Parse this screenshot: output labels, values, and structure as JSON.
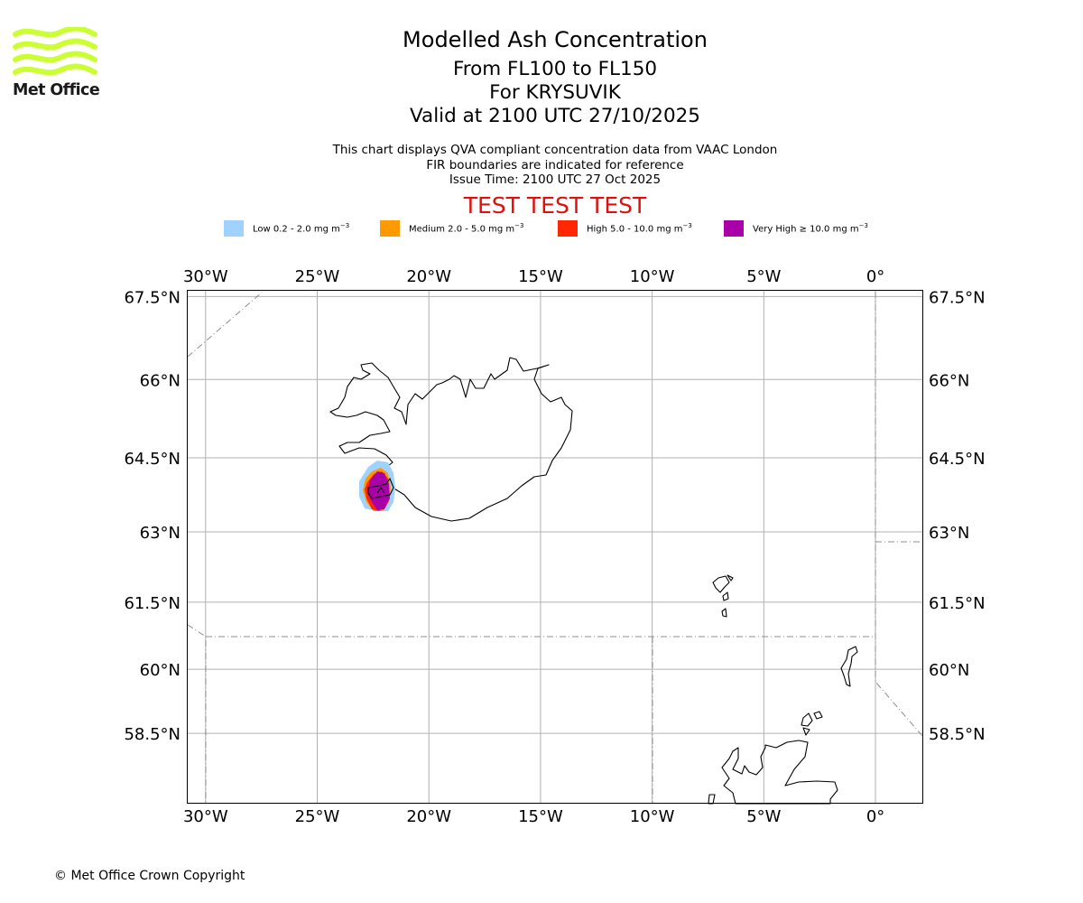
{
  "logo": {
    "text": "Met Office",
    "color": "#ccff33"
  },
  "header": {
    "title": "Modelled Ash Concentration",
    "levels": "From FL100 to FL150",
    "volcano": "For KRYSUVIK",
    "valid": "Valid at 2100 UTC 27/10/2025",
    "desc1": "This chart displays QVA compliant concentration data from VAAC London",
    "desc2": "FIR boundaries are indicated for reference",
    "issue": "Issue Time: 2100 UTC 27 Oct 2025",
    "test": "TEST TEST TEST"
  },
  "legend": [
    {
      "label": "Low 0.2 - 2.0 mg m",
      "unit_exp": "−3",
      "color": "#a0d2ff"
    },
    {
      "label": "Medium 2.0 - 5.0 mg m",
      "unit_exp": "−3",
      "color": "#ff9900"
    },
    {
      "label": "High 5.0 - 10.0 mg m",
      "unit_exp": "−3",
      "color": "#ff2800"
    },
    {
      "label": "Very High ≥ 10.0 mg m",
      "unit_exp": "−3",
      "color": "#aa00aa"
    }
  ],
  "map": {
    "extent": {
      "lon_min": -30.8,
      "lon_max": 2.1,
      "lat_min": 56.8,
      "lat_max": 67.6
    },
    "lon_ticks": [
      {
        "lon": -30,
        "label": "30°W"
      },
      {
        "lon": -25,
        "label": "25°W"
      },
      {
        "lon": -20,
        "label": "20°W"
      },
      {
        "lon": -15,
        "label": "15°W"
      },
      {
        "lon": -10,
        "label": "10°W"
      },
      {
        "lon": -5,
        "label": "5°W"
      },
      {
        "lon": 0,
        "label": "0°"
      }
    ],
    "lat_ticks": [
      {
        "lat": 67.5,
        "label": "67.5°N"
      },
      {
        "lat": 66,
        "label": "66°N"
      },
      {
        "lat": 64.5,
        "label": "64.5°N"
      },
      {
        "lat": 63,
        "label": "63°N"
      },
      {
        "lat": 61.5,
        "label": "61.5°N"
      },
      {
        "lat": 60,
        "label": "60°N"
      },
      {
        "lat": 58.5,
        "label": "58.5°N"
      }
    ]
  },
  "footer": {
    "copyright": "© Met Office Crown Copyright"
  }
}
